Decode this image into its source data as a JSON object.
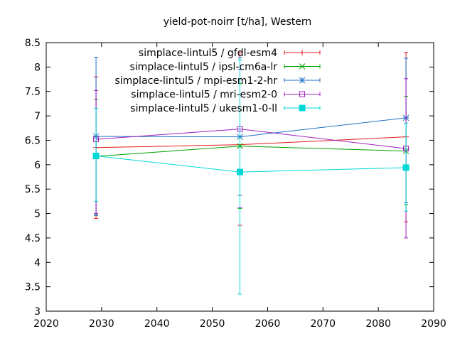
{
  "chart_data": {
    "type": "line",
    "title": "yield-pot-noirr [t/ha], Western",
    "xlabel": "",
    "ylabel": "",
    "xlim": [
      2020,
      2090
    ],
    "ylim": [
      3,
      8.5
    ],
    "xticks": [
      2020,
      2030,
      2040,
      2050,
      2060,
      2070,
      2080,
      2090
    ],
    "yticks": [
      3,
      3.5,
      4,
      4.5,
      5,
      5.5,
      6,
      6.5,
      7,
      7.5,
      8,
      8.5
    ],
    "grid": false,
    "legend_position": "top-right",
    "series": [
      {
        "name": "simplace-lintul5 / gfdl-esm4",
        "color": "#e41a1c",
        "marker": "plus",
        "x": [
          2029,
          2055,
          2085
        ],
        "y": [
          6.35,
          6.41,
          6.57
        ],
        "err_low": [
          4.9,
          4.76,
          4.83
        ],
        "err_high": [
          7.8,
          8.3,
          8.3
        ]
      },
      {
        "name": "simplace-lintul5 / ipsl-cm6a-lr",
        "color": "#00a000",
        "marker": "cross",
        "x": [
          2029,
          2055,
          2085
        ],
        "y": [
          6.17,
          6.38,
          6.28
        ],
        "err_low": [
          4.97,
          5.1,
          5.18
        ],
        "err_high": [
          7.34,
          7.66,
          7.4
        ]
      },
      {
        "name": "simplace-lintul5 / mpi-esm1-2-hr",
        "color": "#1f6fc4",
        "marker": "star",
        "x": [
          2029,
          2055,
          2085
        ],
        "y": [
          6.58,
          6.57,
          6.96
        ],
        "err_low": [
          4.96,
          5.37,
          5.22
        ],
        "err_high": [
          8.2,
          8.2,
          8.18
        ]
      },
      {
        "name": "simplace-lintul5 / mri-esm2-0",
        "color": "#a020c0",
        "marker": "square-open",
        "x": [
          2029,
          2055,
          2085
        ],
        "y": [
          6.52,
          6.73,
          6.33
        ],
        "err_low": [
          5.0,
          5.12,
          4.5
        ],
        "err_high": [
          7.52,
          7.95,
          7.76
        ]
      },
      {
        "name": "simplace-lintul5 / ukesm1-0-ll",
        "color": "#00d8d8",
        "marker": "square-filled",
        "x": [
          2029,
          2055,
          2085
        ],
        "y": [
          6.18,
          5.85,
          5.94
        ],
        "err_low": [
          5.25,
          3.35,
          5.05
        ],
        "err_high": [
          7.15,
          8.15,
          6.85
        ]
      }
    ]
  }
}
